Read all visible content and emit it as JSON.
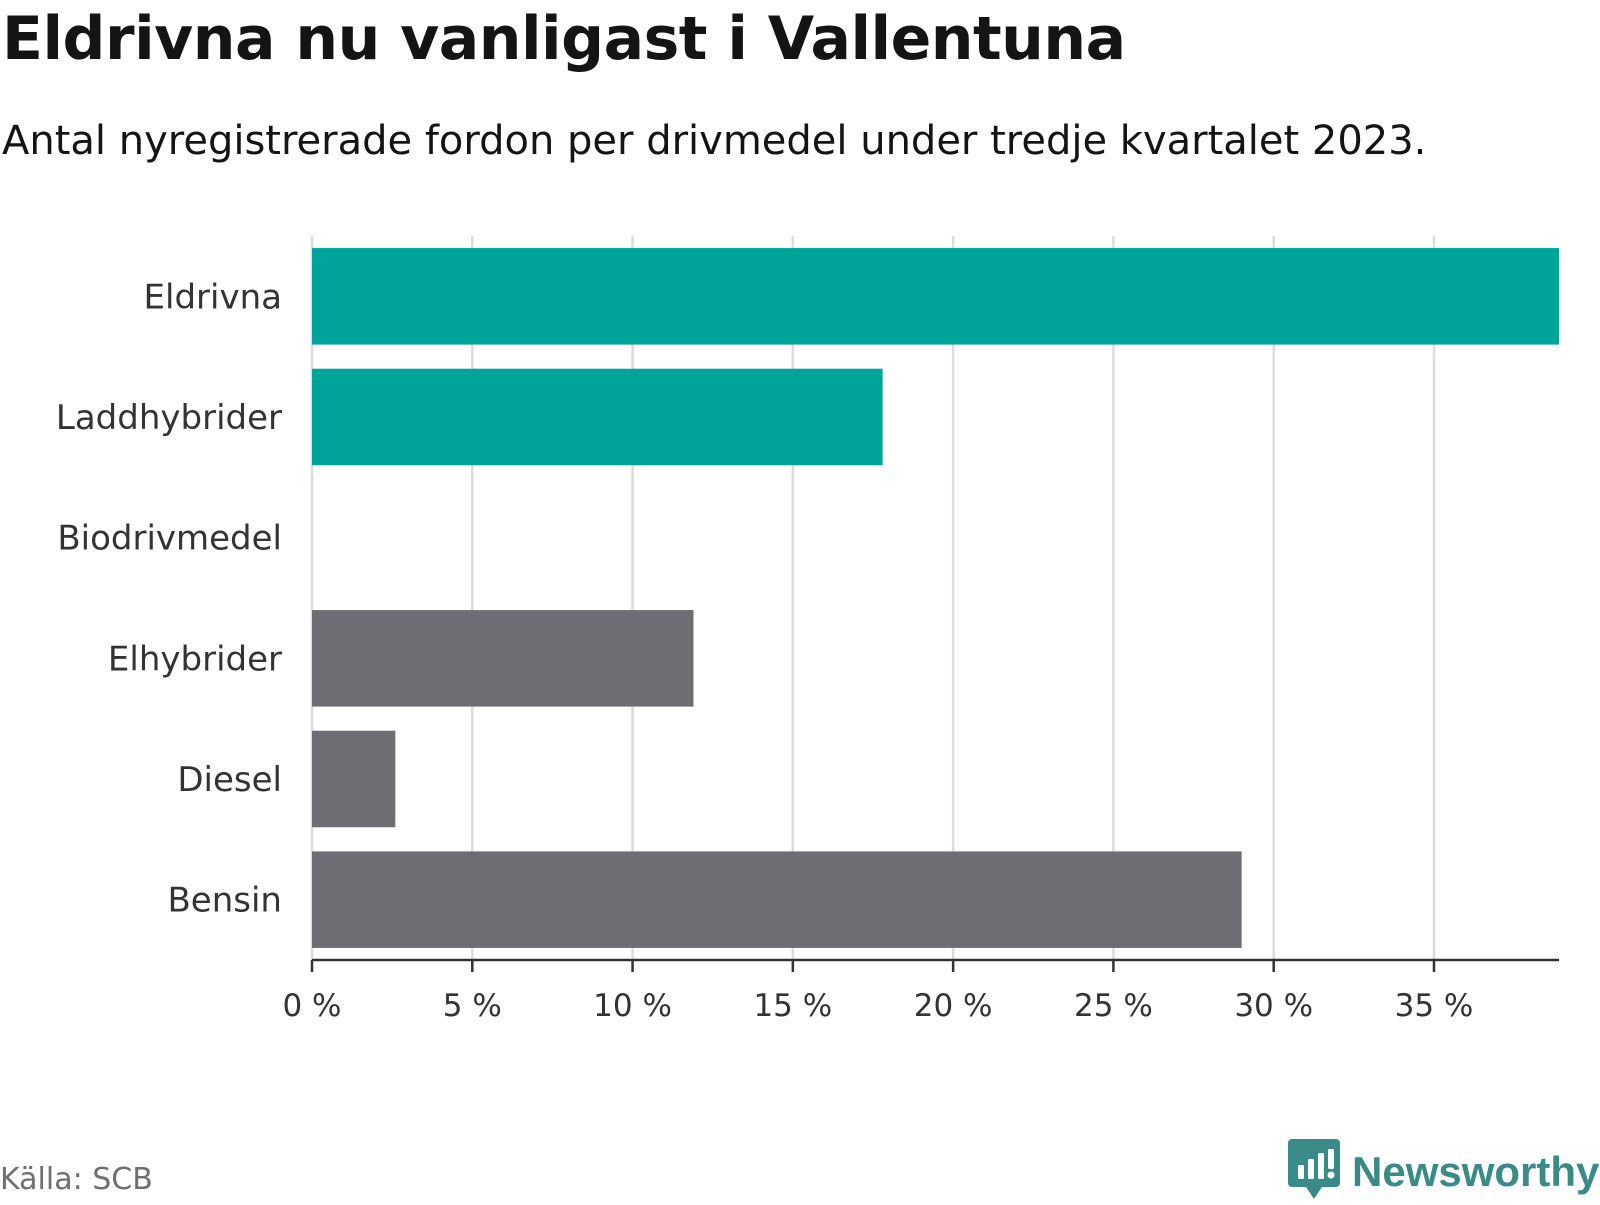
{
  "title": "Eldrivna nu vanligast i Vallentuna",
  "subtitle": "Antal nyregistrerade fordon per drivmedel under tredje kvartalet 2023.",
  "source": "Källa: SCB",
  "brand": {
    "name": "Newsworthy",
    "icon": "newsworthy-logo-icon",
    "color": "#3a8a87"
  },
  "colors": {
    "highlight": "#00a39a",
    "default": "#6e6d73",
    "grid": "#dcdcdc",
    "axis": "#333333"
  },
  "chart_data": {
    "type": "bar",
    "orientation": "horizontal",
    "title": "Eldrivna nu vanligast i Vallentuna",
    "subtitle": "Antal nyregistrerade fordon per drivmedel under tredje kvartalet 2023.",
    "xlabel": "",
    "ylabel": "",
    "categories": [
      "Eldrivna",
      "Laddhybrider",
      "Biodrivmedel",
      "Elhybrider",
      "Diesel",
      "Bensin"
    ],
    "values": [
      38.9,
      17.8,
      0,
      11.9,
      2.6,
      29.0
    ],
    "highlighted": [
      "Eldrivna",
      "Laddhybrider"
    ],
    "unit": "%",
    "xlim": [
      0,
      38.9
    ],
    "xticks": [
      0,
      5,
      10,
      15,
      20,
      25,
      30,
      35
    ],
    "tick_labels": [
      "0 %",
      "5 %",
      "10 %",
      "15 %",
      "20 %",
      "25 %",
      "30 %",
      "35 %"
    ],
    "grid": true,
    "legend": "none"
  }
}
